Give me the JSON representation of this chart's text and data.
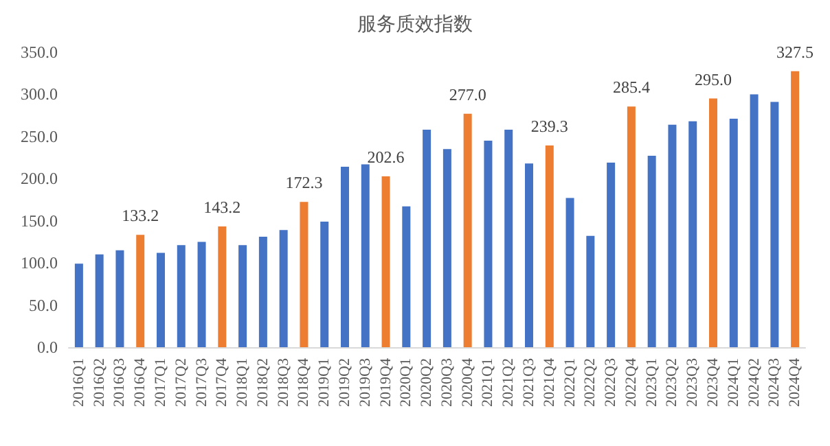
{
  "chart_data": {
    "type": "bar",
    "title": "服务质效指数",
    "categories": [
      "2016Q1",
      "2016Q2",
      "2016Q3",
      "2016Q4",
      "2017Q1",
      "2017Q2",
      "2017Q3",
      "2017Q4",
      "2018Q1",
      "2018Q2",
      "2018Q3",
      "2018Q4",
      "2019Q1",
      "2019Q2",
      "2019Q3",
      "2019Q4",
      "2020Q1",
      "2020Q2",
      "2020Q3",
      "2020Q4",
      "2021Q1",
      "2021Q2",
      "2021Q3",
      "2021Q4",
      "2022Q1",
      "2022Q2",
      "2022Q3",
      "2022Q4",
      "2023Q1",
      "2023Q2",
      "2023Q3",
      "2023Q4",
      "2024Q1",
      "2024Q2",
      "2024Q3",
      "2024Q4"
    ],
    "values": [
      99,
      110,
      115,
      133.2,
      112,
      121,
      125,
      143.2,
      121,
      131,
      139,
      172.3,
      149,
      214,
      217,
      202.6,
      167,
      258,
      235,
      277.0,
      245,
      258,
      218,
      239.3,
      177,
      132,
      219,
      285.4,
      227,
      264,
      268,
      295.0,
      271,
      300,
      291,
      327.5
    ],
    "colors": [
      "#4472c4",
      "#4472c4",
      "#4472c4",
      "#ed7d31",
      "#4472c4",
      "#4472c4",
      "#4472c4",
      "#ed7d31",
      "#4472c4",
      "#4472c4",
      "#4472c4",
      "#ed7d31",
      "#4472c4",
      "#4472c4",
      "#4472c4",
      "#ed7d31",
      "#4472c4",
      "#4472c4",
      "#4472c4",
      "#ed7d31",
      "#4472c4",
      "#4472c4",
      "#4472c4",
      "#ed7d31",
      "#4472c4",
      "#4472c4",
      "#4472c4",
      "#ed7d31",
      "#4472c4",
      "#4472c4",
      "#4472c4",
      "#ed7d31",
      "#4472c4",
      "#4472c4",
      "#4472c4",
      "#ed7d31"
    ],
    "value_labels": [
      null,
      null,
      null,
      "133.2",
      null,
      null,
      null,
      "143.2",
      null,
      null,
      null,
      "172.3",
      null,
      null,
      null,
      "202.6",
      null,
      null,
      null,
      "277.0",
      null,
      null,
      null,
      "239.3",
      null,
      null,
      null,
      "285.4",
      null,
      null,
      null,
      "295.0",
      null,
      null,
      null,
      "327.5"
    ],
    "ylim": [
      0,
      350
    ],
    "yticks": [
      {
        "value": 0,
        "label": "0.0"
      },
      {
        "value": 50,
        "label": "50.0"
      },
      {
        "value": 100,
        "label": "100.0"
      },
      {
        "value": 150,
        "label": "150.0"
      },
      {
        "value": 200,
        "label": "200.0"
      },
      {
        "value": 250,
        "label": "250.0"
      },
      {
        "value": 300,
        "label": "300.0"
      },
      {
        "value": 350,
        "label": "350.0"
      }
    ],
    "grid": false
  }
}
